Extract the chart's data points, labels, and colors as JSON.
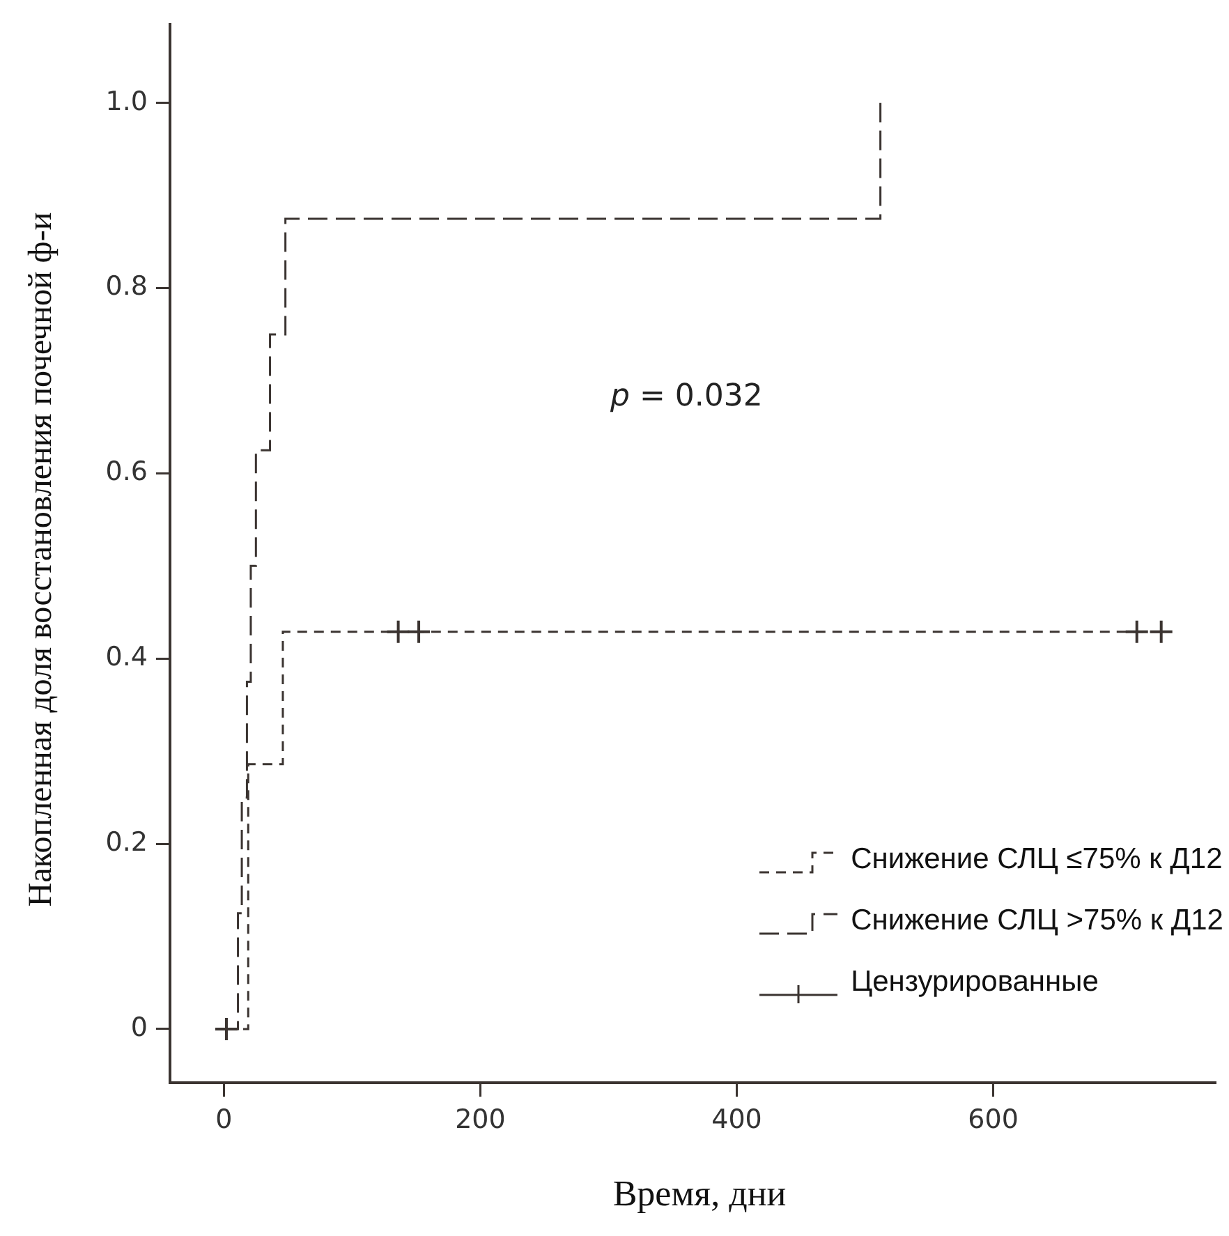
{
  "chart_data": {
    "type": "step",
    "xlabel": "Время, дни",
    "ylabel": "Накопленная доля восстановления почечной ф-и",
    "annotations": [
      "p = 0.032"
    ],
    "series": [
      {
        "name": "Снижение СЛЦ ≤75% к Д12",
        "color": "#3b3431",
        "line_style": "dashed",
        "x": [
          2,
          19,
          46,
          731
        ],
        "values": [
          0,
          0.286,
          0.429,
          0.429
        ]
      },
      {
        "name": "Снижение СЛЦ >75% к Д12",
        "color": "#3b3431",
        "line_style": "dashed",
        "x": [
          2,
          11,
          14,
          18,
          21,
          25,
          36,
          48,
          512
        ],
        "values": [
          0,
          0.125,
          0.25,
          0.375,
          0.5,
          0.625,
          0.75,
          0.875,
          1.0
        ]
      },
      {
        "name": "Цензурированные",
        "type": "scatter",
        "color": "#3b3431",
        "marker": "cross",
        "x": [
          2,
          136,
          152,
          712,
          731
        ],
        "values": [
          0,
          0.429,
          0.429,
          0.429,
          0.429
        ]
      }
    ],
    "xlim": [
      -42,
      773
    ],
    "xticks": [
      0,
      200,
      400,
      600
    ],
    "ylim": [
      -0.058,
      1.085
    ],
    "yticks": [
      0,
      0.2,
      0.4,
      0.6,
      0.8,
      {
        "value": 1,
        "label": "1.0"
      }
    ],
    "grid": false,
    "legend": "bottom right"
  }
}
